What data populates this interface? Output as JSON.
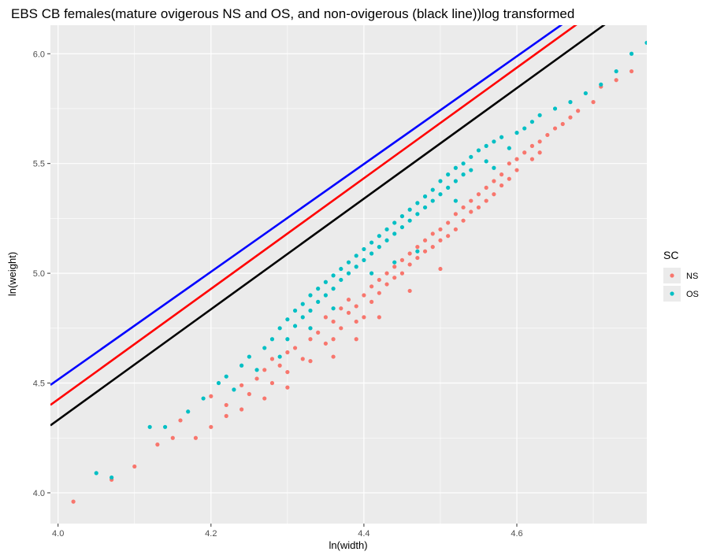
{
  "chart_data": {
    "type": "scatter",
    "title": "EBS CB females(mature ovigerous NS and OS, and non-ovigerous (black line))log transformed",
    "xlabel": "ln(width)",
    "ylabel": "ln(weight)",
    "xlim": [
      3.99,
      4.77
    ],
    "ylim": [
      3.86,
      6.13
    ],
    "x_ticks": [
      4.0,
      4.2,
      4.4,
      4.6
    ],
    "x_tick_labels": [
      "4.0",
      "4.2",
      "4.4",
      "4.6"
    ],
    "y_ticks": [
      4.0,
      4.5,
      5.0,
      5.5,
      6.0
    ],
    "y_tick_labels": [
      "4.0",
      "4.5",
      "5.0",
      "5.5",
      "6.0"
    ],
    "grid": true,
    "legend": {
      "title": "SC",
      "position": "right",
      "entries": [
        {
          "label": "NS",
          "color": "#F8766D"
        },
        {
          "label": "OS",
          "color": "#00BFC4"
        }
      ]
    },
    "series": [
      {
        "name": "NS",
        "color": "#F8766D",
        "points": [
          [
            4.02,
            3.96
          ],
          [
            4.07,
            4.06
          ],
          [
            4.1,
            4.12
          ],
          [
            4.13,
            4.22
          ],
          [
            4.15,
            4.25
          ],
          [
            4.16,
            4.33
          ],
          [
            4.18,
            4.25
          ],
          [
            4.2,
            4.3
          ],
          [
            4.2,
            4.44
          ],
          [
            4.22,
            4.4
          ],
          [
            4.22,
            4.35
          ],
          [
            4.24,
            4.49
          ],
          [
            4.25,
            4.45
          ],
          [
            4.26,
            4.52
          ],
          [
            4.27,
            4.56
          ],
          [
            4.28,
            4.5
          ],
          [
            4.28,
            4.61
          ],
          [
            4.29,
            4.58
          ],
          [
            4.3,
            4.64
          ],
          [
            4.3,
            4.55
          ],
          [
            4.31,
            4.66
          ],
          [
            4.32,
            4.61
          ],
          [
            4.33,
            4.7
          ],
          [
            4.33,
            4.75
          ],
          [
            4.34,
            4.73
          ],
          [
            4.35,
            4.68
          ],
          [
            4.35,
            4.8
          ],
          [
            4.36,
            4.78
          ],
          [
            4.36,
            4.7
          ],
          [
            4.37,
            4.84
          ],
          [
            4.37,
            4.75
          ],
          [
            4.38,
            4.82
          ],
          [
            4.38,
            4.88
          ],
          [
            4.39,
            4.85
          ],
          [
            4.39,
            4.7
          ],
          [
            4.4,
            4.9
          ],
          [
            4.4,
            4.8
          ],
          [
            4.41,
            4.94
          ],
          [
            4.41,
            4.87
          ],
          [
            4.42,
            4.97
          ],
          [
            4.42,
            4.91
          ],
          [
            4.43,
            5.0
          ],
          [
            4.43,
            4.95
          ],
          [
            4.44,
            5.03
          ],
          [
            4.44,
            4.98
          ],
          [
            4.45,
            5.06
          ],
          [
            4.45,
            5.0
          ],
          [
            4.46,
            5.09
          ],
          [
            4.46,
            5.04
          ],
          [
            4.47,
            5.12
          ],
          [
            4.47,
            5.07
          ],
          [
            4.48,
            5.15
          ],
          [
            4.48,
            5.1
          ],
          [
            4.49,
            5.18
          ],
          [
            4.49,
            5.12
          ],
          [
            4.5,
            5.2
          ],
          [
            4.5,
            5.15
          ],
          [
            4.51,
            5.23
          ],
          [
            4.51,
            5.17
          ],
          [
            4.52,
            5.27
          ],
          [
            4.52,
            5.2
          ],
          [
            4.53,
            5.3
          ],
          [
            4.53,
            5.24
          ],
          [
            4.54,
            5.33
          ],
          [
            4.54,
            5.28
          ],
          [
            4.55,
            5.36
          ],
          [
            4.55,
            5.3
          ],
          [
            4.56,
            5.39
          ],
          [
            4.56,
            5.33
          ],
          [
            4.57,
            5.42
          ],
          [
            4.58,
            5.45
          ],
          [
            4.58,
            5.4
          ],
          [
            4.59,
            5.5
          ],
          [
            4.59,
            5.43
          ],
          [
            4.6,
            5.52
          ],
          [
            4.6,
            5.47
          ],
          [
            4.61,
            5.55
          ],
          [
            4.62,
            5.58
          ],
          [
            4.62,
            5.52
          ],
          [
            4.63,
            5.6
          ],
          [
            4.64,
            5.63
          ],
          [
            4.65,
            5.66
          ],
          [
            4.66,
            5.68
          ],
          [
            4.67,
            5.71
          ],
          [
            4.68,
            5.74
          ],
          [
            4.7,
            5.78
          ],
          [
            4.71,
            5.85
          ],
          [
            4.73,
            5.88
          ],
          [
            4.75,
            5.92
          ],
          [
            4.39,
            4.78
          ],
          [
            4.42,
            4.8
          ],
          [
            4.3,
            4.48
          ],
          [
            4.27,
            4.43
          ],
          [
            4.24,
            4.38
          ],
          [
            4.46,
            4.92
          ],
          [
            4.5,
            5.02
          ],
          [
            4.36,
            4.62
          ],
          [
            4.33,
            4.6
          ],
          [
            4.57,
            5.36
          ],
          [
            4.63,
            5.55
          ]
        ]
      },
      {
        "name": "OS",
        "color": "#00BFC4",
        "points": [
          [
            4.05,
            4.09
          ],
          [
            4.07,
            4.07
          ],
          [
            4.12,
            4.3
          ],
          [
            4.14,
            4.3
          ],
          [
            4.17,
            4.37
          ],
          [
            4.19,
            4.43
          ],
          [
            4.21,
            4.5
          ],
          [
            4.22,
            4.53
          ],
          [
            4.23,
            4.47
          ],
          [
            4.24,
            4.58
          ],
          [
            4.25,
            4.62
          ],
          [
            4.26,
            4.56
          ],
          [
            4.27,
            4.66
          ],
          [
            4.28,
            4.7
          ],
          [
            4.29,
            4.75
          ],
          [
            4.3,
            4.79
          ],
          [
            4.3,
            4.7
          ],
          [
            4.31,
            4.83
          ],
          [
            4.31,
            4.76
          ],
          [
            4.32,
            4.86
          ],
          [
            4.32,
            4.8
          ],
          [
            4.33,
            4.9
          ],
          [
            4.33,
            4.83
          ],
          [
            4.34,
            4.93
          ],
          [
            4.34,
            4.87
          ],
          [
            4.35,
            4.96
          ],
          [
            4.35,
            4.9
          ],
          [
            4.36,
            4.99
          ],
          [
            4.36,
            4.93
          ],
          [
            4.37,
            5.02
          ],
          [
            4.37,
            4.97
          ],
          [
            4.38,
            5.05
          ],
          [
            4.38,
            5.0
          ],
          [
            4.39,
            5.08
          ],
          [
            4.39,
            5.03
          ],
          [
            4.4,
            5.11
          ],
          [
            4.4,
            5.06
          ],
          [
            4.41,
            5.14
          ],
          [
            4.41,
            5.09
          ],
          [
            4.42,
            5.17
          ],
          [
            4.42,
            5.12
          ],
          [
            4.43,
            5.2
          ],
          [
            4.43,
            5.15
          ],
          [
            4.44,
            5.23
          ],
          [
            4.44,
            5.18
          ],
          [
            4.45,
            5.26
          ],
          [
            4.45,
            5.21
          ],
          [
            4.46,
            5.29
          ],
          [
            4.46,
            5.24
          ],
          [
            4.47,
            5.32
          ],
          [
            4.47,
            5.27
          ],
          [
            4.48,
            5.35
          ],
          [
            4.48,
            5.3
          ],
          [
            4.49,
            5.38
          ],
          [
            4.49,
            5.33
          ],
          [
            4.5,
            5.42
          ],
          [
            4.5,
            5.36
          ],
          [
            4.51,
            5.45
          ],
          [
            4.51,
            5.39
          ],
          [
            4.52,
            5.48
          ],
          [
            4.52,
            5.42
          ],
          [
            4.53,
            5.5
          ],
          [
            4.53,
            5.45
          ],
          [
            4.54,
            5.53
          ],
          [
            4.54,
            5.47
          ],
          [
            4.55,
            5.56
          ],
          [
            4.56,
            5.58
          ],
          [
            4.56,
            5.51
          ],
          [
            4.57,
            5.6
          ],
          [
            4.58,
            5.62
          ],
          [
            4.59,
            5.57
          ],
          [
            4.6,
            5.64
          ],
          [
            4.61,
            5.66
          ],
          [
            4.62,
            5.69
          ],
          [
            4.63,
            5.72
          ],
          [
            4.65,
            5.75
          ],
          [
            4.67,
            5.78
          ],
          [
            4.69,
            5.82
          ],
          [
            4.71,
            5.86
          ],
          [
            4.73,
            5.92
          ],
          [
            4.75,
            6.0
          ],
          [
            4.77,
            6.05
          ],
          [
            4.44,
            5.05
          ],
          [
            4.47,
            5.1
          ],
          [
            4.36,
            4.84
          ],
          [
            4.33,
            4.75
          ],
          [
            4.52,
            5.33
          ],
          [
            4.57,
            5.48
          ],
          [
            4.29,
            4.62
          ],
          [
            4.41,
            5.0
          ]
        ]
      }
    ],
    "fit_lines": [
      {
        "name": "OS",
        "color": "#0000FF",
        "intercept": -5.3,
        "slope": 2.454
      },
      {
        "name": "NS",
        "color": "#FF0000",
        "intercept": -5.649,
        "slope": 2.5186
      },
      {
        "name": "non-ovigerous",
        "color": "#000000",
        "intercept": -5.742,
        "slope": 2.5186
      }
    ]
  }
}
